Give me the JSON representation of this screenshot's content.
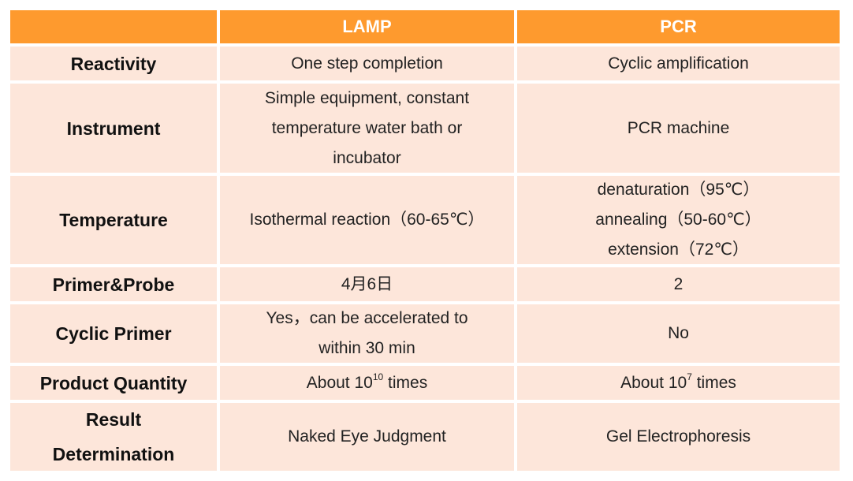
{
  "table": {
    "headers": [
      "",
      "LAMP",
      "PCR"
    ],
    "rows": [
      {
        "label": [
          "Reactivity"
        ],
        "lamp": [
          "One step completion"
        ],
        "pcr": [
          "Cyclic amplification"
        ]
      },
      {
        "label": [
          "Instrument"
        ],
        "lamp": [
          "Simple equipment, constant",
          "temperature water bath or",
          "incubator"
        ],
        "pcr": [
          "PCR machine"
        ]
      },
      {
        "label": [
          "Temperature"
        ],
        "lamp": [
          "Isothermal reaction（60-65℃）"
        ],
        "pcr": [
          "denaturation（95℃）",
          "annealing（50-60℃）",
          "extension（72℃）"
        ]
      },
      {
        "label": [
          "Primer&Probe"
        ],
        "lamp": [
          "4月6日"
        ],
        "pcr": [
          "2"
        ]
      },
      {
        "label": [
          "Cyclic Primer"
        ],
        "lamp": [
          "Yes，can be accelerated to",
          "within 30 min"
        ],
        "pcr": [
          "No"
        ]
      },
      {
        "label": [
          "Product Quantity"
        ],
        "lamp_quantity": {
          "prefix": "About 10",
          "exponent": "10",
          "suffix": " times"
        },
        "pcr_quantity": {
          "prefix": "About 10",
          "exponent": "7",
          "suffix": " times"
        }
      },
      {
        "label": [
          "Result",
          "Determination"
        ],
        "lamp": [
          "Naked Eye Judgment"
        ],
        "pcr": [
          "Gel Electrophoresis"
        ]
      }
    ]
  }
}
